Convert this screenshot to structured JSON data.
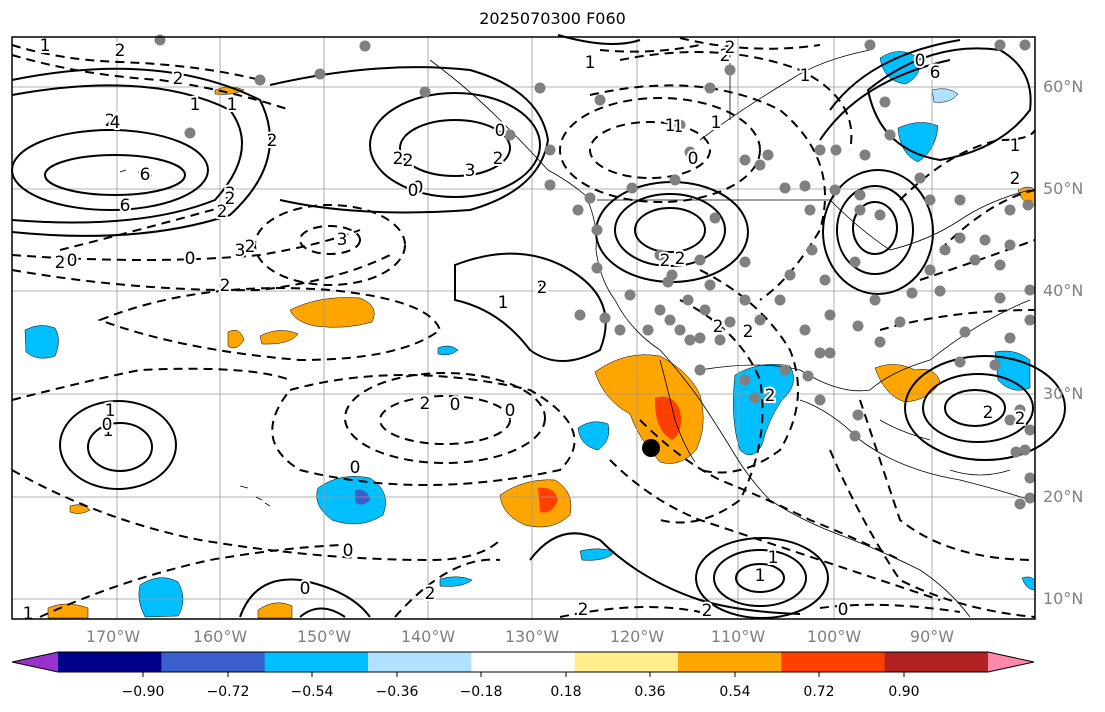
{
  "title": "2025070300 F060",
  "map": {
    "lat_labels": [
      "60°N",
      "50°N",
      "40°N",
      "30°N",
      "20°N",
      "10°N"
    ],
    "lon_labels": [
      "170°W",
      "160°W",
      "150°W",
      "140°W",
      "130°W",
      "120°W",
      "110°W",
      "100°W",
      "90°W"
    ],
    "contour_labels": [
      "2",
      "1",
      "2",
      "6",
      "4",
      "6",
      "3",
      "2",
      "3",
      "0",
      "2",
      "2",
      "0",
      "0",
      "3",
      "1",
      "2",
      "1",
      "0",
      "2",
      "1",
      "1",
      "2",
      "1",
      "2",
      "2",
      "2",
      "1",
      "0",
      "1",
      "1",
      "1",
      "0",
      "0",
      "2",
      "2",
      "2",
      "0",
      "0",
      "0",
      "0",
      "2",
      "2",
      "2",
      "1",
      "1",
      "0",
      "1",
      "2",
      "2",
      "1",
      "0",
      "0",
      "2",
      "2",
      "3",
      "1",
      "2",
      "2",
      "2",
      "2",
      "1",
      "0",
      "2",
      "6",
      "2"
    ],
    "station_marker_color": "#808080",
    "highlight_marker_color": "#000000"
  },
  "colorbar": {
    "ticks": [
      "−0.90",
      "−0.72",
      "−0.54",
      "−0.36",
      "−0.18",
      "0.18",
      "0.36",
      "0.54",
      "0.72",
      "0.90"
    ],
    "colors": [
      "#9932cc",
      "#00008b",
      "#3a5fcd",
      "#00bfff",
      "#b0e2ff",
      "#ffffff",
      "#ffec8b",
      "#ffa500",
      "#ff3f00",
      "#b22222",
      "#ff88aa"
    ]
  }
}
